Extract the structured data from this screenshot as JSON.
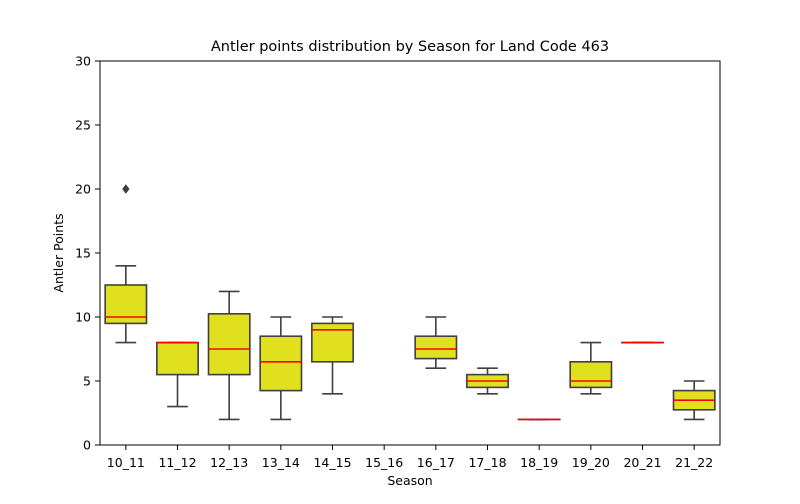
{
  "chart_data": {
    "type": "box",
    "title": "Antler points distribution by Season for Land Code 463",
    "xlabel": "Season",
    "ylabel": "Antler Points",
    "ylim": [
      0,
      30
    ],
    "yticks": [
      0,
      5,
      10,
      15,
      20,
      25,
      30
    ],
    "categories": [
      "10_11",
      "11_12",
      "12_13",
      "13_14",
      "14_15",
      "15_16",
      "16_17",
      "17_18",
      "18_19",
      "19_20",
      "20_21",
      "21_22"
    ],
    "boxes": [
      {
        "category": "10_11",
        "whisker_low": 8,
        "q1": 9.5,
        "median": 10,
        "q3": 12.5,
        "whisker_high": 14,
        "outliers": [
          20
        ]
      },
      {
        "category": "11_12",
        "whisker_low": 3,
        "q1": 5.5,
        "median": 8,
        "q3": 8,
        "whisker_high": 8,
        "outliers": []
      },
      {
        "category": "12_13",
        "whisker_low": 2,
        "q1": 5.5,
        "median": 7.5,
        "q3": 10.25,
        "whisker_high": 12,
        "outliers": []
      },
      {
        "category": "13_14",
        "whisker_low": 2,
        "q1": 4.25,
        "median": 6.5,
        "q3": 8.5,
        "whisker_high": 10,
        "outliers": []
      },
      {
        "category": "14_15",
        "whisker_low": 4,
        "q1": 6.5,
        "median": 9,
        "q3": 9.5,
        "whisker_high": 10,
        "outliers": []
      },
      {
        "category": "15_16",
        "whisker_low": null,
        "q1": null,
        "median": null,
        "q3": null,
        "whisker_high": null,
        "outliers": []
      },
      {
        "category": "16_17",
        "whisker_low": 6,
        "q1": 6.75,
        "median": 7.5,
        "q3": 8.5,
        "whisker_high": 10,
        "outliers": []
      },
      {
        "category": "17_18",
        "whisker_low": 4,
        "q1": 4.5,
        "median": 5,
        "q3": 5.5,
        "whisker_high": 6,
        "outliers": []
      },
      {
        "category": "18_19",
        "whisker_low": 2,
        "q1": 2,
        "median": 2,
        "q3": 2,
        "whisker_high": 2,
        "outliers": []
      },
      {
        "category": "19_20",
        "whisker_low": 4,
        "q1": 4.5,
        "median": 5,
        "q3": 6.5,
        "whisker_high": 8,
        "outliers": []
      },
      {
        "category": "20_21",
        "whisker_low": 8,
        "q1": 8,
        "median": 8,
        "q3": 8,
        "whisker_high": 8,
        "outliers": []
      },
      {
        "category": "21_22",
        "whisker_low": 2,
        "q1": 2.75,
        "median": 3.5,
        "q3": 4.25,
        "whisker_high": 5,
        "outliers": []
      }
    ],
    "colors": {
      "box_fill": "#e0e01e",
      "box_edge": "#3f3f3f",
      "median": "#ff0000",
      "axis": "#000000"
    },
    "grid": false
  }
}
